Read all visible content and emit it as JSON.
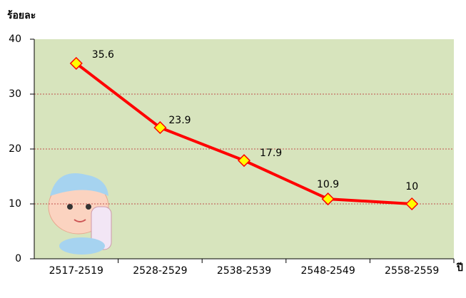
{
  "chart_data": {
    "type": "line",
    "y_label": "ร้อยละ",
    "x_label": "ปี",
    "categories": [
      "2517-2519",
      "2528-2529",
      "2538-2539",
      "2548-2549",
      "2558-2559"
    ],
    "series": [
      {
        "name": null,
        "color": "#ff0000",
        "marker_color": "#ffff00",
        "values": [
          35.6,
          23.9,
          17.9,
          10.9,
          10.0
        ]
      }
    ],
    "ylim": [
      0,
      40
    ],
    "yticks": [
      0,
      10,
      20,
      30,
      40
    ],
    "grid": true,
    "grid_color": "#c0504d",
    "plot_background": "#d7e4bd"
  }
}
